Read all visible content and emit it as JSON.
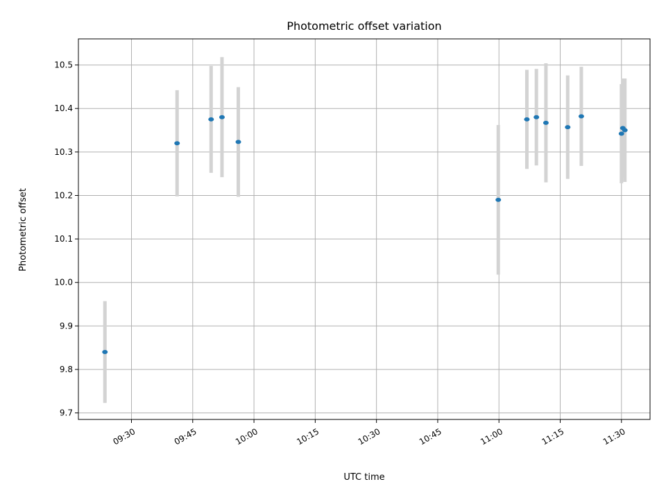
{
  "chart_data": {
    "type": "scatter",
    "title": "Photometric offset variation",
    "xlabel": "UTC time",
    "ylabel": "Photometric offset",
    "x_unit": "time",
    "xlim": [
      "09:17",
      "11:37"
    ],
    "ylim": [
      9.685,
      10.56
    ],
    "grid": true,
    "legend": "none",
    "point_color": "#1f77b4",
    "errorbar_color": "#d3d3d3",
    "x_ticks": [
      "09:30",
      "09:45",
      "10:00",
      "10:15",
      "10:30",
      "10:45",
      "11:00",
      "11:15",
      "11:30"
    ],
    "y_ticks": [
      9.7,
      9.8,
      9.9,
      10.0,
      10.1,
      10.2,
      10.3,
      10.4,
      10.5
    ],
    "y_tick_labels": [
      "9.7",
      "9.8",
      "9.9",
      "10.0",
      "10.1",
      "10.2",
      "10.3",
      "10.4",
      "10.5"
    ],
    "points": [
      {
        "x": "09:23:30",
        "y": 9.84,
        "err": 0.117
      },
      {
        "x": "09:41:10",
        "y": 10.32,
        "err": 0.122
      },
      {
        "x": "09:49:30",
        "y": 10.375,
        "err": 0.123
      },
      {
        "x": "09:52:10",
        "y": 10.38,
        "err": 0.138
      },
      {
        "x": "09:56:10",
        "y": 10.323,
        "err": 0.126
      },
      {
        "x": "10:59:50",
        "y": 10.19,
        "err": 0.172
      },
      {
        "x": "11:06:50",
        "y": 10.375,
        "err": 0.114
      },
      {
        "x": "11:09:10",
        "y": 10.38,
        "err": 0.111
      },
      {
        "x": "11:11:30",
        "y": 10.367,
        "err": 0.137
      },
      {
        "x": "11:16:50",
        "y": 10.357,
        "err": 0.119
      },
      {
        "x": "11:20:10",
        "y": 10.382,
        "err": 0.114
      },
      {
        "x": "11:30:00",
        "y": 10.342,
        "err": 0.114
      },
      {
        "x": "11:30:20",
        "y": 10.355,
        "err": 0.114
      },
      {
        "x": "11:30:50",
        "y": 10.35,
        "err": 0.119
      }
    ]
  }
}
